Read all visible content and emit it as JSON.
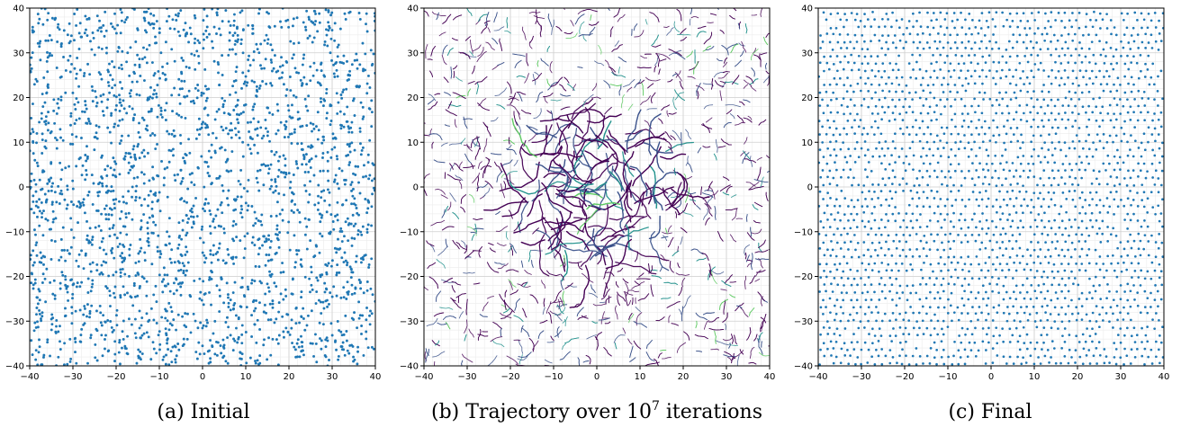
{
  "figure": {
    "captions": [
      "(a) Initial",
      "(b) Trajectory over 10",
      "(c) Final"
    ],
    "caption_superscript": "7",
    "caption_suffix": " iterations"
  },
  "chart_data": [
    {
      "type": "scatter",
      "title": "",
      "xlabel": "",
      "ylabel": "",
      "xlim": [
        -40,
        40
      ],
      "ylim": [
        -40,
        40
      ],
      "xticks": [
        -40,
        -30,
        -20,
        -10,
        0,
        10,
        20,
        30,
        40
      ],
      "yticks": [
        -40,
        -30,
        -20,
        -10,
        0,
        10,
        20,
        30,
        40
      ],
      "grid": true,
      "minor_grid": true,
      "point_color": "#1f77b4",
      "distribution": "uniform random",
      "n_points": 2500
    },
    {
      "type": "line",
      "title": "",
      "xlabel": "",
      "ylabel": "",
      "xlim": [
        -40,
        40
      ],
      "ylim": [
        -40,
        40
      ],
      "xticks": [
        -40,
        -30,
        -20,
        -10,
        0,
        10,
        20,
        30,
        40
      ],
      "yticks": [
        -40,
        -30,
        -20,
        -10,
        0,
        10,
        20,
        30,
        40
      ],
      "grid": true,
      "minor_grid": true,
      "colormap": [
        "#440154",
        "#3b528b",
        "#21918c",
        "#5ec962"
      ],
      "distribution": "short trajectory segments, denser near center",
      "n_segments": 1500
    },
    {
      "type": "scatter",
      "title": "",
      "xlabel": "",
      "ylabel": "",
      "xlim": [
        -40,
        40
      ],
      "ylim": [
        -40,
        40
      ],
      "xticks": [
        -40,
        -30,
        -20,
        -10,
        0,
        10,
        20,
        30,
        40
      ],
      "yticks": [
        -40,
        -30,
        -20,
        -10,
        0,
        10,
        20,
        30,
        40
      ],
      "grid": true,
      "minor_grid": true,
      "point_color": "#1f77b4",
      "distribution": "near-regular lattice",
      "n_points": 2500
    }
  ]
}
